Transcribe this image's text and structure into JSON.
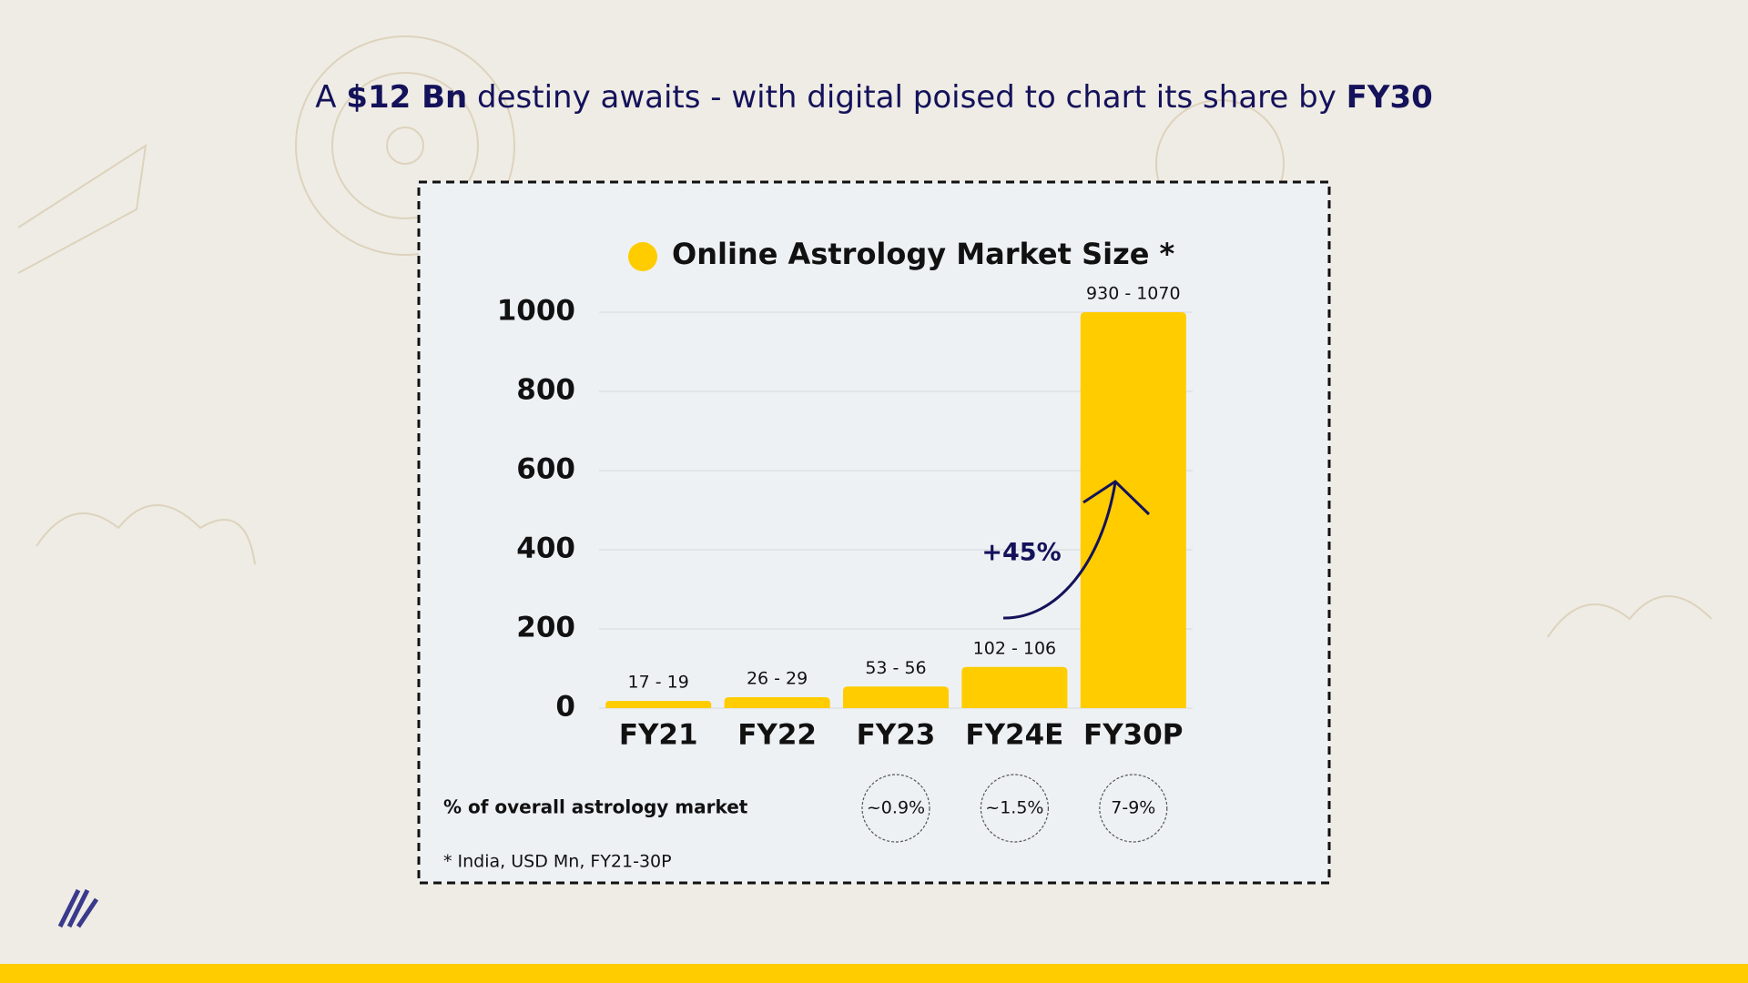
{
  "chart_data": {
    "type": "bar",
    "title_parts": [
      {
        "text": "A ",
        "bold": false
      },
      {
        "text": "$12 Bn",
        "bold": true
      },
      {
        "text": " destiny awaits - with digital poised to chart its share by ",
        "bold": false
      },
      {
        "text": "FY30",
        "bold": true
      }
    ],
    "categories": [
      "FY21",
      "FY22",
      "FY23",
      "FY24E",
      "FY30P"
    ],
    "series": [
      {
        "name": "Online Astrology Market Size *",
        "color": "#ffcc00",
        "values": [
          18,
          27.5,
          54.5,
          104,
          1000
        ],
        "value_labels": [
          "17 - 19",
          "26 - 29",
          "53 - 56",
          "102 - 106",
          "930 - 1070"
        ]
      }
    ],
    "ylim": [
      0,
      1000
    ],
    "yticks": [
      0,
      200,
      400,
      600,
      800,
      1000
    ],
    "grid": true,
    "annotation": "+45%",
    "share_title": "% of overall astrology market",
    "share_labels": [
      null,
      null,
      "~0.9%",
      "~1.5%",
      "7-9%"
    ],
    "footnote": "* India, USD Mn, FY21-30P"
  }
}
